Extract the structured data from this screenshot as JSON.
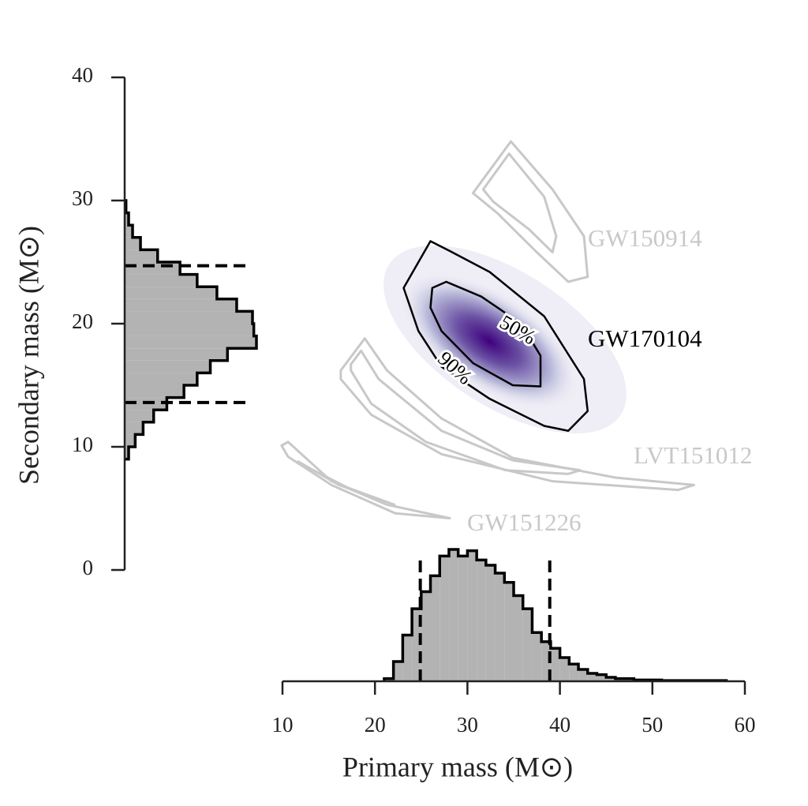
{
  "chart_data": {
    "type": "corner",
    "xlabel": "Primary mass (M⊙)",
    "ylabel": "Secondary mass (M⊙)",
    "xlim": [
      10,
      60
    ],
    "xticks": [
      10,
      20,
      30,
      40,
      50,
      60
    ],
    "ylim": [
      0,
      40
    ],
    "yticks": [
      0,
      10,
      20,
      30,
      40
    ],
    "contours": [
      {
        "name": "GW150914",
        "color": "#c8c8c8",
        "lines": [
          {
            "x": [
              30.6,
              34.7,
              39.2,
              42.6,
              43.0,
              40.9,
              37.5,
              33.2
            ],
            "y": [
              30.6,
              34.8,
              30.9,
              27.1,
              23.8,
              23.4,
              25.8,
              29.0
            ]
          },
          {
            "x": [
              31.7,
              34.5,
              38.3,
              39.6,
              39.2,
              36.6,
              32.8
            ],
            "y": [
              30.9,
              33.8,
              30.3,
              27.1,
              25.8,
              27.7,
              29.9
            ]
          }
        ]
      },
      {
        "name": "GW170104",
        "color": "#000000",
        "level_labels": [
          "90%",
          "50%"
        ],
        "lines": [
          {
            "x": [
              23.1,
              26.0,
              28.1,
              32.4,
              38.3,
              42.6,
              43.0,
              40.9,
              38.3,
              32.4,
              27.2,
              24.7
            ],
            "y": [
              22.9,
              26.7,
              25.9,
              24.2,
              20.6,
              15.5,
              12.9,
              11.3,
              11.7,
              13.9,
              16.5,
              19.4
            ]
          },
          {
            "x": [
              26.2,
              27.7,
              31.5,
              35.8,
              37.9,
              37.9,
              34.9,
              30.6,
              27.2,
              26.0
            ],
            "y": [
              22.9,
              23.4,
              22.2,
              20.0,
              17.4,
              14.9,
              15.0,
              16.8,
              19.4,
              21.3
            ]
          }
        ]
      },
      {
        "name": "LVT151012",
        "color": "#c8c8c8",
        "lines": [
          {
            "x": [
              16.3,
              18.9,
              21.3,
              27.2,
              34.9,
              46.0,
              54.5,
              52.8,
              39.2,
              27.2,
              19.6,
              16.3
            ],
            "y": [
              16.2,
              18.8,
              16.2,
              12.3,
              9.1,
              7.5,
              6.9,
              6.5,
              7.2,
              9.4,
              12.6,
              15.5
            ]
          },
          {
            "x": [
              17.4,
              18.5,
              20.4,
              27.2,
              34.9,
              42.2,
              40.9,
              34.1,
              25.5,
              19.6,
              17.4
            ],
            "y": [
              16.7,
              17.8,
              15.5,
              11.3,
              8.9,
              8.1,
              7.8,
              8.1,
              10.4,
              13.5,
              16.2
            ]
          }
        ]
      },
      {
        "name": "GW151226",
        "color": "#c8c8c8",
        "lines": [
          {
            "x": [
              9.9,
              10.6,
              15.3,
              21.3,
              28.1,
              22.2,
              15.3,
              10.6
            ],
            "y": [
              10.1,
              10.4,
              7.2,
              5.3,
              4.2,
              4.6,
              6.9,
              9.2
            ]
          },
          {
            "x": [
              11.7,
              16.1,
              22.1,
              17.0,
              12.3
            ],
            "y": [
              8.8,
              6.9,
              5.3,
              6.7,
              8.5
            ]
          }
        ]
      }
    ],
    "x_histogram": {
      "bins": [
        21,
        22,
        23,
        24,
        25,
        26,
        27,
        28,
        29,
        30,
        31,
        32,
        33,
        34,
        35,
        36,
        37,
        38,
        39,
        40,
        41,
        42,
        43,
        44,
        45,
        46,
        47,
        48,
        49,
        50,
        51,
        52,
        53,
        54,
        55,
        56,
        57,
        58
      ],
      "values": [
        2,
        15,
        35,
        55,
        68,
        80,
        95,
        100,
        95,
        99,
        92,
        88,
        82,
        75,
        65,
        55,
        37,
        30,
        25,
        18,
        13,
        9,
        6,
        5,
        3,
        2,
        2,
        1,
        1,
        1,
        0.5,
        0.5,
        0.5,
        0.5,
        0.5,
        0.5,
        0.5
      ],
      "interval": [
        24.9,
        38.9
      ]
    },
    "y_histogram": {
      "bins": [
        9,
        10,
        11,
        12,
        13,
        14,
        15,
        16,
        17,
        18,
        19,
        20,
        21,
        22,
        23,
        24,
        25,
        26,
        27,
        28,
        29,
        30
      ],
      "values": [
        3,
        8,
        14,
        22,
        32,
        45,
        55,
        65,
        78,
        100,
        98,
        97,
        85,
        70,
        55,
        42,
        25,
        12,
        6,
        3,
        1
      ],
      "interval": [
        13.6,
        24.7
      ]
    }
  }
}
